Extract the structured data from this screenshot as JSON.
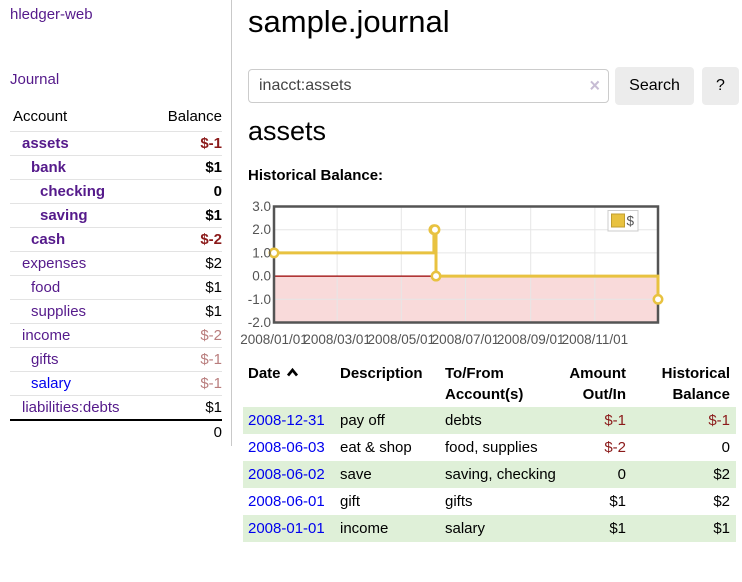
{
  "app": {
    "brand": "hledger-web"
  },
  "colors": {
    "purple_link": "#551a8b",
    "blue_link": "#0000ee",
    "text": "#000000",
    "negative_strong": "#8b1a1a",
    "negative_soft": "#b97d7d",
    "row_stripe_green": "#dff0d8",
    "chart_series": "#e8c240",
    "chart_series_border": "#c19e2f",
    "chart_negative_fill": "#f9dada",
    "chart_zero_line": "#990000",
    "chart_grid": "#e6e6e6",
    "chart_border": "#545454"
  },
  "sidebar": {
    "journal_label": "Journal",
    "accounts": {
      "account_header": "Account",
      "balance_header": "Balance",
      "rows": [
        {
          "name": "assets",
          "balance": "$-1",
          "depth": 1,
          "bold": true,
          "name_color": "purple_link",
          "balance_color": "negative_strong"
        },
        {
          "name": "bank",
          "balance": "$1",
          "depth": 2,
          "bold": true,
          "name_color": "purple_link",
          "balance_color": "text"
        },
        {
          "name": "checking",
          "balance": "0",
          "depth": 3,
          "bold": true,
          "name_color": "purple_link",
          "balance_color": "text"
        },
        {
          "name": "saving",
          "balance": "$1",
          "depth": 3,
          "bold": true,
          "name_color": "purple_link",
          "balance_color": "text"
        },
        {
          "name": "cash",
          "balance": "$-2",
          "depth": 2,
          "bold": true,
          "name_color": "purple_link",
          "balance_color": "negative_strong"
        },
        {
          "name": "expenses",
          "balance": "$2",
          "depth": 1,
          "bold": false,
          "name_color": "purple_link",
          "balance_color": "text"
        },
        {
          "name": "food",
          "balance": "$1",
          "depth": 2,
          "bold": false,
          "name_color": "purple_link",
          "balance_color": "text"
        },
        {
          "name": "supplies",
          "balance": "$1",
          "depth": 2,
          "bold": false,
          "name_color": "purple_link",
          "balance_color": "text"
        },
        {
          "name": "income",
          "balance": "$-2",
          "depth": 1,
          "bold": false,
          "name_color": "purple_link",
          "balance_color": "negative_soft"
        },
        {
          "name": "gifts",
          "balance": "$-1",
          "depth": 2,
          "bold": false,
          "name_color": "purple_link",
          "balance_color": "negative_soft"
        },
        {
          "name": "salary",
          "balance": "$-1",
          "depth": 2,
          "bold": false,
          "name_color": "blue_link",
          "balance_color": "negative_soft"
        },
        {
          "name": "liabilities:debts",
          "balance": "$1",
          "depth": 1,
          "bold": false,
          "name_color": "purple_link",
          "balance_color": "text"
        }
      ],
      "total": "0"
    }
  },
  "main": {
    "title": "sample.journal",
    "account_heading": "assets",
    "chart_label": "Historical Balance:"
  },
  "search": {
    "value": "inacct:assets",
    "clear_glyph": "×",
    "button_label": "Search",
    "help_label": "?"
  },
  "chart_data": {
    "type": "line",
    "step": true,
    "title": "Historical Balance:",
    "series": [
      {
        "name": "$",
        "points": [
          {
            "date": "2008-01-01",
            "value": 1
          },
          {
            "date": "2008-06-01",
            "value": 2
          },
          {
            "date": "2008-06-02",
            "value": 2
          },
          {
            "date": "2008-06-03",
            "value": 0
          },
          {
            "date": "2008-12-31",
            "value": -1
          }
        ]
      }
    ],
    "xlim": [
      "2008-01-01",
      "2008-12-31"
    ],
    "ylim": [
      -2,
      3
    ],
    "yticks": [
      "3.0",
      "2.0",
      "1.0",
      "0.0",
      "-1.0",
      "-2.0"
    ],
    "xticks": [
      "2008/01/01",
      "2008/03/01",
      "2008/05/01",
      "2008/07/01",
      "2008/09/01",
      "2008/11/01"
    ],
    "legend": {
      "label": "$",
      "position": "top-right"
    },
    "grid": true,
    "markings": {
      "negative_region": "below zero shaded pink",
      "zero_line": "dark red"
    }
  },
  "register": {
    "headers": {
      "date": "Date",
      "description": "Description",
      "accounts": "To/From Account(s)",
      "amount": "Amount Out/In",
      "balance": "Historical Balance"
    },
    "sort": {
      "column": "date",
      "direction": "ascending"
    },
    "rows": [
      {
        "date": "2008-12-31",
        "description": "pay off",
        "accounts": "debts",
        "amount": "$-1",
        "balance": "$-1",
        "amount_negative": true,
        "balance_negative": true,
        "striped": true
      },
      {
        "date": "2008-06-03",
        "description": "eat & shop",
        "accounts": "food, supplies",
        "amount": "$-2",
        "balance": "0",
        "amount_negative": true,
        "balance_negative": false,
        "striped": false
      },
      {
        "date": "2008-06-02",
        "description": "save",
        "accounts": "saving, checking",
        "amount": "0",
        "balance": "$2",
        "amount_negative": false,
        "balance_negative": false,
        "striped": true
      },
      {
        "date": "2008-06-01",
        "description": "gift",
        "accounts": "gifts",
        "amount": "$1",
        "balance": "$2",
        "amount_negative": false,
        "balance_negative": false,
        "striped": false
      },
      {
        "date": "2008-01-01",
        "description": "income",
        "accounts": "salary",
        "amount": "$1",
        "balance": "$1",
        "amount_negative": false,
        "balance_negative": false,
        "striped": true
      }
    ]
  }
}
